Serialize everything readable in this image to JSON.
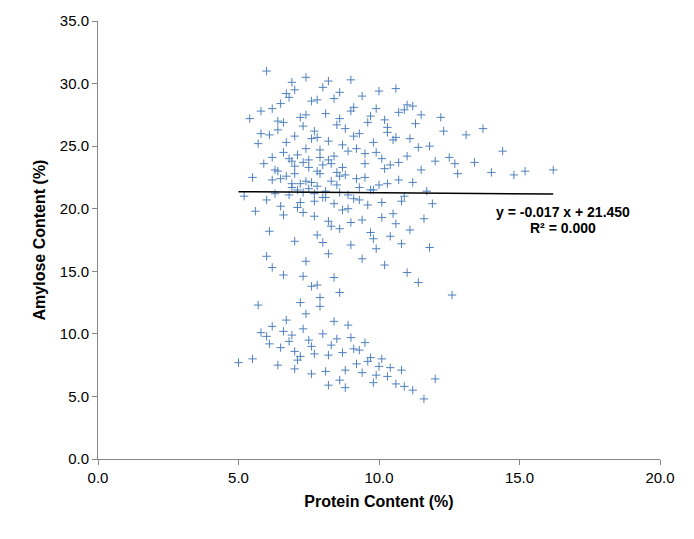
{
  "chart_data": {
    "type": "scatter",
    "x_label": "Protein Content (%)",
    "y_label": "Amylose Content (%)",
    "xlim": [
      0,
      20
    ],
    "ylim": [
      0,
      35
    ],
    "xticks": [
      {
        "value": 0,
        "label": "0.0"
      },
      {
        "value": 5,
        "label": "5.0"
      },
      {
        "value": 10,
        "label": "10.0"
      },
      {
        "value": 15,
        "label": "15.0"
      },
      {
        "value": 20,
        "label": "20.0"
      }
    ],
    "yticks": [
      {
        "value": 0,
        "label": "0.0"
      },
      {
        "value": 5,
        "label": "5.0"
      },
      {
        "value": 10,
        "label": "10.0"
      },
      {
        "value": 15,
        "label": "15.0"
      },
      {
        "value": 20,
        "label": "20.0"
      },
      {
        "value": 25,
        "label": "25.0"
      },
      {
        "value": 30,
        "label": "30.0"
      },
      {
        "value": 35,
        "label": "35.0"
      }
    ],
    "grid": false,
    "annotations": [
      "y = -0.017 x + 21.450",
      "R² = 0.000"
    ],
    "series": [
      {
        "type": "scatter",
        "color": "#4f81bd",
        "marker": "plus",
        "x": [
          5.2,
          5.5,
          5.8,
          6.0,
          6.2,
          6.4,
          6.6,
          6.8,
          7.0,
          7.2,
          7.4,
          7.6,
          7.8,
          8.0,
          8.2,
          8.4,
          8.6,
          8.8,
          9.0,
          9.2,
          9.4,
          9.6,
          9.8,
          10.0,
          10.2,
          10.4,
          10.6,
          10.8,
          11.0,
          11.2,
          5.6,
          5.9,
          6.1,
          6.3,
          6.5,
          6.7,
          6.9,
          7.1,
          7.3,
          7.5,
          7.7,
          7.9,
          8.1,
          8.3,
          8.5,
          8.7,
          8.9,
          9.1,
          9.3,
          9.5,
          9.7,
          9.9,
          10.1,
          10.3,
          10.5,
          10.7,
          10.9,
          11.1,
          11.4,
          11.7,
          5.7,
          6.0,
          6.2,
          6.4,
          6.6,
          6.8,
          7.0,
          7.2,
          7.4,
          7.6,
          7.8,
          8.0,
          8.2,
          8.4,
          8.6,
          8.8,
          9.0,
          9.2,
          9.4,
          9.6,
          9.8,
          10.0,
          10.2,
          10.4,
          10.6,
          10.8,
          11.0,
          11.3,
          11.6,
          12.0,
          6.1,
          6.3,
          6.5,
          6.7,
          6.9,
          7.1,
          7.3,
          7.5,
          7.7,
          7.9,
          8.1,
          8.3,
          8.5,
          8.7,
          8.9,
          9.1,
          9.3,
          9.5,
          9.7,
          9.9,
          10.1,
          10.3,
          10.5,
          10.7,
          10.9,
          11.2,
          11.5,
          11.8,
          12.2,
          12.5,
          12.8,
          13.1,
          13.4,
          13.7,
          14.0,
          14.4,
          14.8,
          15.2,
          16.2,
          12.6,
          6.0,
          6.2,
          6.6,
          7.0,
          7.4,
          7.8,
          8.2,
          8.6,
          9.0,
          9.4,
          9.8,
          10.2,
          10.6,
          11.0,
          11.4,
          11.8,
          7.2,
          7.6,
          8.0,
          8.4,
          6.5,
          6.9,
          7.3,
          7.7,
          8.1,
          8.5,
          8.9,
          9.3,
          9.7,
          10.1,
          6.8,
          7.0,
          7.2,
          7.4,
          7.6,
          7.8,
          8.0,
          8.2,
          8.4,
          8.6,
          5.4,
          5.8,
          6.2,
          6.6,
          7.0,
          7.4,
          7.8,
          8.2,
          8.6,
          9.0,
          6.4,
          6.7,
          7.1,
          7.5,
          7.9,
          8.3,
          8.7,
          9.1,
          9.5,
          9.9,
          10.3,
          10.7,
          11.1,
          11.5,
          11.9,
          12.3,
          12.7,
          6.9,
          7.3,
          7.7,
          5.0,
          5.5,
          5.8,
          6.1,
          6.4,
          6.7,
          7.0,
          7.3,
          7.6,
          7.9,
          8.2,
          8.5,
          8.8,
          9.1,
          9.4,
          9.7,
          10.0,
          10.3,
          10.6,
          10.9,
          11.2,
          11.6,
          12.0,
          6.2,
          6.5,
          6.8,
          7.1,
          7.4,
          7.7,
          8.0,
          8.3,
          8.6,
          8.9,
          9.2,
          9.5,
          9.8,
          10.1,
          10.4,
          6.0,
          6.6,
          6.9,
          7.2,
          7.5,
          7.8,
          8.1,
          8.4,
          8.7,
          9.0,
          9.3,
          5.7,
          7.3,
          7.9,
          8.6,
          9.6,
          7.0,
          7.6,
          8.2,
          8.8,
          9.9,
          10.8
        ],
        "values": [
          21.0,
          22.5,
          27.8,
          31.0,
          24.1,
          26.3,
          19.5,
          28.9,
          23.4,
          22.0,
          30.5,
          25.6,
          21.8,
          29.7,
          23.9,
          20.4,
          27.2,
          22.7,
          30.3,
          24.8,
          19.1,
          26.9,
          21.5,
          29.4,
          23.2,
          17.8,
          25.7,
          20.6,
          28.3,
          22.1,
          19.8,
          23.6,
          25.9,
          21.2,
          28.4,
          22.6,
          30.1,
          20.1,
          26.6,
          23.3,
          19.4,
          24.7,
          27.6,
          18.6,
          22.9,
          25.1,
          20.0,
          28.1,
          21.7,
          24.4,
          27.4,
          16.8,
          24.0,
          26.1,
          19.6,
          23.7,
          27.9,
          18.3,
          24.9,
          21.4,
          25.2,
          20.7,
          22.3,
          27.0,
          24.5,
          21.1,
          25.8,
          27.3,
          22.2,
          28.6,
          23.0,
          20.9,
          25.4,
          28.8,
          21.3,
          26.4,
          18.9,
          22.4,
          29.0,
          20.3,
          25.3,
          21.9,
          27.1,
          23.5,
          29.6,
          17.2,
          24.2,
          26.8,
          19.2,
          23.8,
          18.2,
          23.1,
          20.2,
          29.2,
          23.8,
          24.3,
          19.7,
          21.6,
          26.2,
          22.8,
          21.4,
          23.6,
          26.7,
          19.9,
          24.6,
          20.8,
          26.0,
          22.5,
          18.1,
          28.0,
          20.5,
          22.0,
          25.5,
          27.7,
          21.0,
          28.2,
          23.1,
          25.0,
          27.3,
          24.1,
          22.8,
          25.9,
          23.7,
          26.4,
          22.9,
          24.6,
          22.7,
          23.0,
          23.1,
          13.1,
          16.2,
          15.3,
          14.7,
          17.4,
          15.8,
          17.9,
          16.4,
          18.4,
          17.1,
          16.0,
          17.6,
          15.5,
          18.8,
          14.9,
          14.1,
          16.9,
          12.5,
          13.8,
          17.3,
          14.5,
          22.4,
          21.7,
          21.3,
          20.6,
          20.9,
          21.9,
          21.1,
          20.7,
          21.5,
          19.3,
          24.0,
          22.8,
          20.5,
          24.8,
          22.1,
          25.7,
          23.5,
          19.0,
          24.2,
          22.6,
          27.2,
          26.0,
          28.0,
          26.9,
          29.5,
          27.5,
          28.7,
          30.2,
          29.3,
          27.8,
          23.0,
          25.3,
          21.5,
          23.9,
          24.1,
          22.2,
          23.3,
          25.8,
          23.6,
          24.5,
          26.5,
          22.3,
          25.6,
          27.5,
          20.4,
          26.2,
          23.6,
          22.0,
          23.7,
          21.2,
          7.7,
          8.0,
          10.1,
          9.2,
          7.5,
          11.1,
          8.6,
          10.4,
          9.0,
          12.9,
          8.3,
          9.6,
          7.1,
          8.8,
          6.9,
          8.1,
          7.4,
          6.6,
          6.0,
          5.8,
          5.5,
          4.8,
          6.4,
          10.6,
          8.9,
          9.4,
          7.9,
          11.6,
          8.4,
          10.0,
          9.1,
          6.3,
          10.7,
          7.6,
          9.3,
          6.1,
          8.0,
          7.3,
          9.8,
          10.2,
          9.9,
          8.2,
          9.5,
          13.9,
          7.0,
          11.0,
          8.5,
          9.7,
          8.7,
          12.3,
          14.6,
          12.2,
          13.3,
          7.8,
          7.2,
          6.8,
          5.9,
          5.7,
          6.7,
          7.1
        ]
      },
      {
        "type": "line",
        "color": "#000000",
        "line_style": "solid",
        "x": [
          5.0,
          16.2
        ],
        "values": [
          21.365,
          21.175
        ]
      }
    ]
  }
}
